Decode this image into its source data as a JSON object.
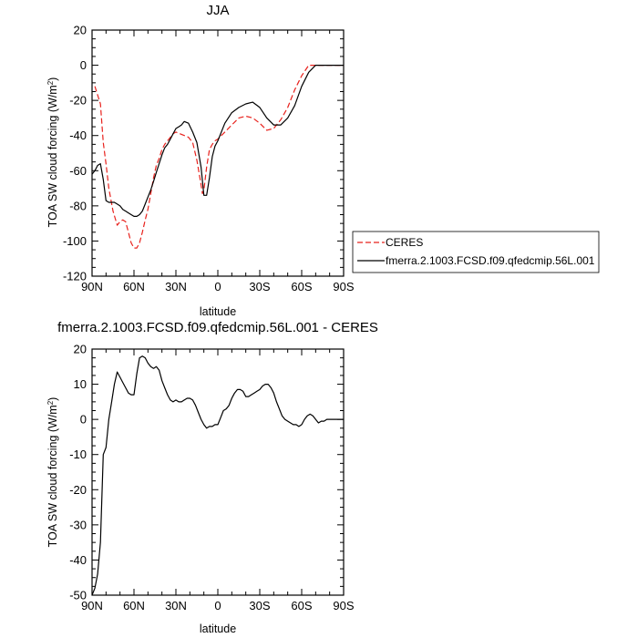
{
  "chart_data": [
    {
      "type": "line",
      "title": "JJA",
      "xlabel": "latitude",
      "ylabel": "TOA SW cloud forcing (W/m²)",
      "xlim": [
        90,
        -90
      ],
      "ylim": [
        -120,
        20
      ],
      "x_ticks": [
        90,
        60,
        30,
        0,
        -30,
        -60,
        -90
      ],
      "x_tick_labels": [
        "90N",
        "60N",
        "30N",
        "0",
        "30S",
        "60S",
        "90S"
      ],
      "y_ticks": [
        -120,
        -100,
        -80,
        -60,
        -40,
        -20,
        0,
        20
      ],
      "y_tick_labels": [
        "-120",
        "-100",
        "-80",
        "-60",
        "-40",
        "-20",
        "0",
        "20"
      ],
      "legend": {
        "placement": "right",
        "entries": [
          "CERES",
          "fmerra.2.1003.FCSD.f09.qfedcmip.56L.001"
        ]
      },
      "series": [
        {
          "name": "CERES",
          "color": "#e8211c",
          "dash": "dashed",
          "x": [
            88,
            84,
            82,
            80,
            78,
            75,
            72,
            70,
            68,
            66,
            64,
            62,
            60,
            58,
            56,
            54,
            52,
            50,
            48,
            46,
            44,
            42,
            40,
            38,
            36,
            34,
            32,
            30,
            27,
            24,
            21,
            18,
            15,
            12,
            11,
            10,
            8,
            6,
            4,
            2,
            0,
            -5,
            -10,
            -15,
            -20,
            -25,
            -30,
            -35,
            -40,
            -45,
            -50,
            -55,
            -60,
            -65,
            -70,
            -75,
            -80,
            -85,
            -90
          ],
          "y": [
            -12,
            -22,
            -44,
            -56,
            -70,
            -83,
            -91,
            -89,
            -88,
            -89,
            -95,
            -101,
            -104,
            -104,
            -101,
            -95,
            -88,
            -82,
            -73,
            -64,
            -57,
            -53,
            -48,
            -45,
            -43,
            -41,
            -39,
            -38,
            -39,
            -40,
            -41,
            -44,
            -54,
            -68,
            -73,
            -71,
            -58,
            -48,
            -45,
            -43,
            -42,
            -38,
            -34,
            -30,
            -29,
            -30,
            -33,
            -37,
            -36,
            -31,
            -24,
            -14,
            -6,
            0,
            0,
            0,
            0,
            0,
            0
          ]
        },
        {
          "name": "fmerra.2.1003.FCSD.f09.qfedcmip.56L.001",
          "color": "#000000",
          "dash": "solid",
          "x": [
            90,
            88,
            86,
            84,
            82,
            80,
            78,
            76,
            74,
            72,
            70,
            68,
            66,
            64,
            62,
            60,
            58,
            56,
            54,
            52,
            50,
            48,
            46,
            44,
            42,
            40,
            38,
            36,
            34,
            32,
            30,
            28,
            26,
            24,
            21,
            18,
            15,
            12,
            10,
            8,
            6,
            4,
            2,
            0,
            -5,
            -10,
            -15,
            -20,
            -25,
            -30,
            -35,
            -40,
            -45,
            -50,
            -55,
            -60,
            -65,
            -70,
            -75,
            -80,
            -85,
            -90
          ],
          "y": [
            -62,
            -60,
            -57,
            -56,
            -65,
            -77,
            -78,
            -78,
            -78,
            -79,
            -80,
            -82,
            -83,
            -84,
            -85,
            -86,
            -86,
            -85,
            -83,
            -79,
            -75,
            -71,
            -66,
            -61,
            -56,
            -51,
            -47,
            -45,
            -42,
            -39,
            -36,
            -35,
            -34,
            -32,
            -33,
            -38,
            -44,
            -58,
            -74,
            -74,
            -64,
            -52,
            -46,
            -43,
            -33,
            -27,
            -24,
            -22,
            -21,
            -24,
            -30,
            -34,
            -34,
            -30,
            -23,
            -12,
            -4,
            0,
            0,
            0,
            0,
            0
          ]
        }
      ]
    },
    {
      "type": "line",
      "title": "fmerra.2.1003.FCSD.f09.qfedcmip.56L.001 - CERES",
      "xlabel": "latitude",
      "ylabel": "TOA SW cloud forcing (W/m²)",
      "xlim": [
        90,
        -90
      ],
      "ylim": [
        -50,
        20
      ],
      "x_ticks": [
        90,
        60,
        30,
        0,
        -30,
        -60,
        -90
      ],
      "x_tick_labels": [
        "90N",
        "60N",
        "30N",
        "0",
        "30S",
        "60S",
        "90S"
      ],
      "y_ticks": [
        -50,
        -40,
        -30,
        -20,
        -10,
        0,
        10,
        20
      ],
      "y_tick_labels": [
        "-50",
        "-40",
        "-30",
        "-20",
        "-10",
        "0",
        "10",
        "20"
      ],
      "series": [
        {
          "color": "#000000",
          "dash": "solid",
          "x": [
            90,
            88,
            86,
            84,
            82,
            80,
            78,
            76,
            74,
            72,
            70,
            68,
            66,
            64,
            62,
            60,
            58,
            56,
            54,
            52,
            50,
            48,
            46,
            44,
            42,
            40,
            38,
            36,
            34,
            32,
            30,
            28,
            26,
            24,
            22,
            20,
            18,
            16,
            14,
            12,
            10,
            8,
            6,
            4,
            2,
            0,
            -2,
            -4,
            -6,
            -8,
            -10,
            -12,
            -14,
            -16,
            -18,
            -20,
            -22,
            -24,
            -26,
            -28,
            -30,
            -32,
            -34,
            -36,
            -38,
            -40,
            -42,
            -44,
            -46,
            -48,
            -50,
            -52,
            -54,
            -56,
            -58,
            -60,
            -62,
            -64,
            -66,
            -68,
            -70,
            -72,
            -74,
            -76,
            -78,
            -80,
            -85,
            -90
          ],
          "y": [
            -50,
            -48,
            -44,
            -35,
            -10,
            -8,
            0,
            5,
            10,
            13.5,
            12,
            10.5,
            9,
            7.5,
            7,
            7,
            13,
            17.5,
            18,
            17.5,
            16,
            15,
            14.5,
            15,
            14,
            11,
            9,
            7,
            5.5,
            5,
            5.5,
            5,
            5,
            5.5,
            6,
            6,
            5.5,
            4,
            2,
            0,
            -1.5,
            -2.5,
            -2,
            -2,
            -1.5,
            -1.5,
            0.5,
            2.5,
            3,
            4,
            6,
            7.5,
            8.5,
            8.5,
            8,
            6.5,
            6.5,
            7,
            7.5,
            8,
            8.5,
            9.5,
            10,
            10,
            9,
            7.5,
            5,
            3,
            1,
            0,
            -0.5,
            -1,
            -1.5,
            -1.5,
            -2,
            -1.5,
            0,
            1,
            1.5,
            1,
            0,
            -1,
            -0.5,
            -0.5,
            0,
            0,
            0,
            0
          ]
        }
      ]
    }
  ]
}
